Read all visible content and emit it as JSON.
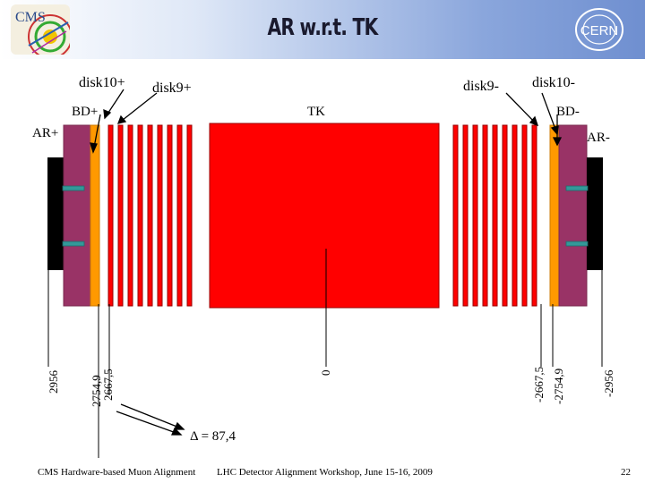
{
  "slide": {
    "title": "AR w.r.t. TK",
    "page_number": "22",
    "footer_left": "CMS Hardware-based Muon Alignment",
    "footer_center": "LHC Detector Alignment Workshop, June 15-16, 2009"
  },
  "labels": {
    "disk10_plus": "disk10+",
    "disk9_plus": "disk9+",
    "disk9_minus": "disk9-",
    "disk10_minus": "disk10-",
    "bd_plus": "BD+",
    "bd_minus": "BD-",
    "tk": "TK",
    "ar_plus": "AR+",
    "ar_minus": "AR-"
  },
  "positions": {
    "p2956": "2956",
    "p2754_9": "2754,9",
    "p2667_5": "2667,5",
    "p0": "0",
    "m2667_5": "-2667,5",
    "m2754_9": "-2754,9",
    "m2956": "-2956"
  },
  "delta": "Δ = 87,4",
  "colors": {
    "tracker": "#ff0000",
    "disk": "#993366",
    "bd": "#ff9900",
    "ar": "#000000",
    "sensor": "#339999"
  }
}
